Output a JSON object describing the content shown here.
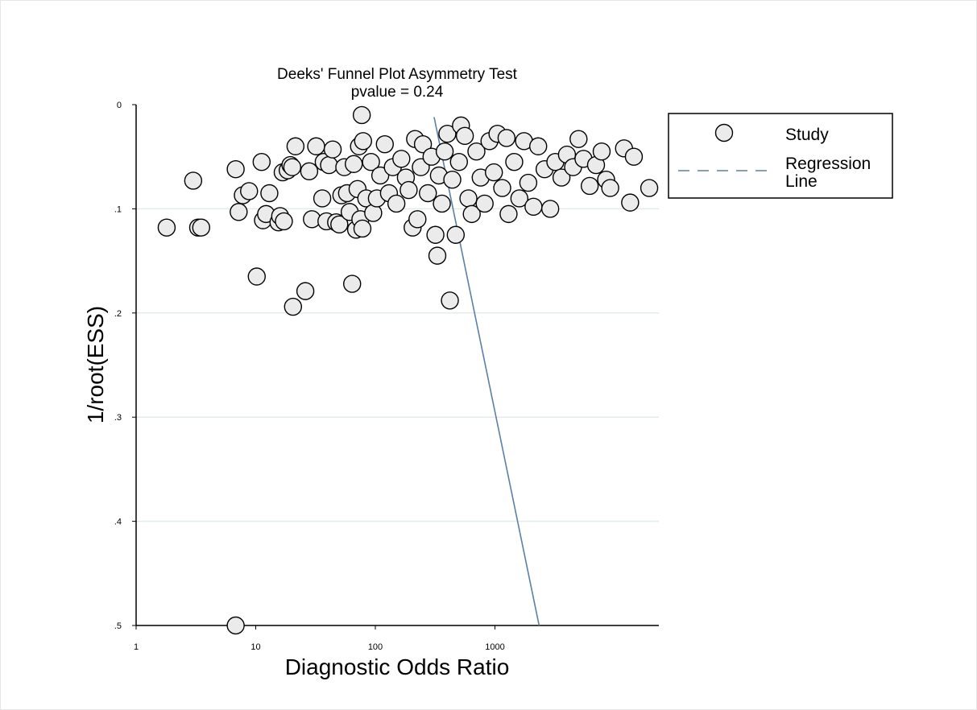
{
  "chart_data": {
    "type": "scatter",
    "title": "Deeks' Funnel Plot Asymmetry Test",
    "subtitle": "pvalue =   0.24",
    "xlabel": "Diagnostic Odds Ratio",
    "ylabel": "1/root(ESS)",
    "x_scale": "log",
    "xlim": [
      1,
      20000
    ],
    "ylim": [
      0,
      0.5
    ],
    "y_reversed": true,
    "x_ticks": [
      1,
      10,
      100,
      1000
    ],
    "x_tick_labels": [
      "1",
      "10",
      "100",
      "1000"
    ],
    "y_ticks": [
      0,
      0.1,
      0.2,
      0.3,
      0.4,
      0.5
    ],
    "y_tick_labels": [
      "0",
      ".1",
      ".2",
      ".3",
      ".4",
      ".5"
    ],
    "grid": true,
    "legend_position": "top-right",
    "series": [
      {
        "name": "Study",
        "kind": "points",
        "points": [
          [
            1.8,
            0.118
          ],
          [
            3.0,
            0.073
          ],
          [
            3.3,
            0.118
          ],
          [
            3.5,
            0.118
          ],
          [
            6.8,
            0.062
          ],
          [
            7.2,
            0.103
          ],
          [
            7.8,
            0.087
          ],
          [
            8.8,
            0.083
          ],
          [
            10.2,
            0.165
          ],
          [
            11.2,
            0.055
          ],
          [
            11.5,
            0.111
          ],
          [
            12.2,
            0.105
          ],
          [
            13.0,
            0.085
          ],
          [
            15.5,
            0.113
          ],
          [
            16.0,
            0.107
          ],
          [
            16.8,
            0.065
          ],
          [
            17.2,
            0.112
          ],
          [
            18.5,
            0.063
          ],
          [
            19.5,
            0.058
          ],
          [
            20.2,
            0.06
          ],
          [
            20.5,
            0.194
          ],
          [
            21.5,
            0.04
          ],
          [
            26.0,
            0.179
          ],
          [
            28.0,
            0.064
          ],
          [
            29.5,
            0.11
          ],
          [
            32.0,
            0.04
          ],
          [
            36.0,
            0.09
          ],
          [
            37.0,
            0.055
          ],
          [
            39.0,
            0.112
          ],
          [
            41.0,
            0.058
          ],
          [
            44.0,
            0.043
          ],
          [
            47.0,
            0.113
          ],
          [
            50.0,
            0.115
          ],
          [
            52.0,
            0.087
          ],
          [
            55.0,
            0.06
          ],
          [
            58.0,
            0.085
          ],
          [
            61.0,
            0.103
          ],
          [
            64.0,
            0.172
          ],
          [
            66.0,
            0.057
          ],
          [
            69.0,
            0.12
          ],
          [
            71.0,
            0.081
          ],
          [
            73.0,
            0.04
          ],
          [
            75.0,
            0.11
          ],
          [
            77.0,
            0.01
          ],
          [
            78.0,
            0.119
          ],
          [
            79.0,
            0.035
          ],
          [
            84.0,
            0.09
          ],
          [
            92.0,
            0.055
          ],
          [
            96.0,
            0.104
          ],
          [
            103.0,
            0.09
          ],
          [
            110.0,
            0.068
          ],
          [
            120.0,
            0.038
          ],
          [
            130.0,
            0.085
          ],
          [
            140.0,
            0.06
          ],
          [
            150.0,
            0.095
          ],
          [
            165.0,
            0.052
          ],
          [
            180.0,
            0.07
          ],
          [
            190.0,
            0.082
          ],
          [
            205.0,
            0.118
          ],
          [
            215.0,
            0.033
          ],
          [
            225.0,
            0.11
          ],
          [
            240.0,
            0.06
          ],
          [
            250.0,
            0.038
          ],
          [
            275.0,
            0.085
          ],
          [
            295.0,
            0.05
          ],
          [
            318.0,
            0.125
          ],
          [
            330.0,
            0.145
          ],
          [
            340.0,
            0.068
          ],
          [
            360.0,
            0.095
          ],
          [
            380.0,
            0.045
          ],
          [
            400.0,
            0.028
          ],
          [
            420.0,
            0.188
          ],
          [
            440.0,
            0.072
          ],
          [
            470.0,
            0.125
          ],
          [
            500.0,
            0.055
          ],
          [
            520.0,
            0.02
          ],
          [
            560.0,
            0.03
          ],
          [
            600.0,
            0.09
          ],
          [
            640.0,
            0.105
          ],
          [
            700.0,
            0.045
          ],
          [
            760.0,
            0.07
          ],
          [
            820.0,
            0.095
          ],
          [
            900.0,
            0.035
          ],
          [
            980.0,
            0.065
          ],
          [
            1050.0,
            0.028
          ],
          [
            1150.0,
            0.08
          ],
          [
            1250.0,
            0.032
          ],
          [
            1300.0,
            0.105
          ],
          [
            1450.0,
            0.055
          ],
          [
            1600.0,
            0.09
          ],
          [
            1750.0,
            0.035
          ],
          [
            1900.0,
            0.075
          ],
          [
            2100.0,
            0.098
          ],
          [
            2300.0,
            0.04
          ],
          [
            2600.0,
            0.062
          ],
          [
            2900.0,
            0.1
          ],
          [
            3200.0,
            0.055
          ],
          [
            3600.0,
            0.07
          ],
          [
            4000.0,
            0.048
          ],
          [
            4500.0,
            0.06
          ],
          [
            5000.0,
            0.033
          ],
          [
            5500.0,
            0.052
          ],
          [
            6200.0,
            0.078
          ],
          [
            7000.0,
            0.058
          ],
          [
            7800.0,
            0.045
          ],
          [
            8500.0,
            0.072
          ],
          [
            9200.0,
            0.08
          ],
          [
            12000.0,
            0.042
          ],
          [
            13500.0,
            0.094
          ],
          [
            14500.0,
            0.05
          ],
          [
            19500.0,
            0.08
          ],
          [
            6.8,
            0.5
          ]
        ]
      },
      {
        "name": "Regression Line",
        "kind": "line",
        "points": [
          [
            310,
            0.012
          ],
          [
            2340,
            0.5
          ]
        ]
      }
    ]
  }
}
